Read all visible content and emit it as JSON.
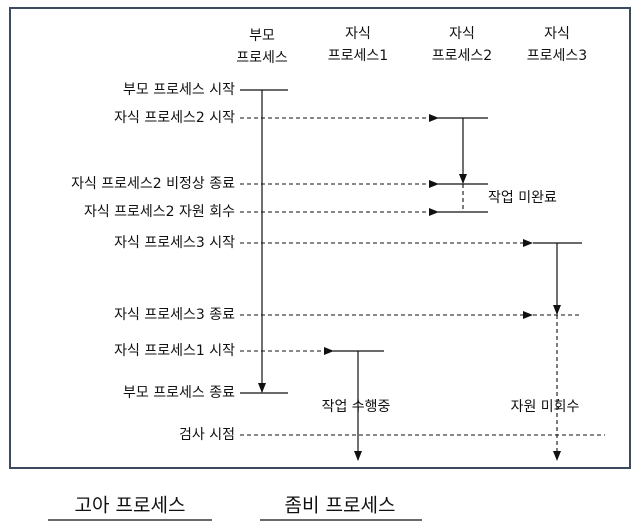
{
  "headers": [
    {
      "lines": [
        "부모",
        "프로세스"
      ]
    },
    {
      "lines": [
        "자식",
        "프로세스1"
      ]
    },
    {
      "lines": [
        "자식",
        "프로세스2"
      ]
    },
    {
      "lines": [
        "자식",
        "프로세스3"
      ]
    }
  ],
  "events": [
    "부모 프로세스 시작",
    "자식 프로세스2 시작",
    "자식 프로세스2 비정상 종료",
    "자식 프로세스2 자원 회수",
    "자식 프로세스3 시작",
    "자식 프로세스3 종료",
    "자식 프로세스1 시작",
    "부모 프로세스 종료",
    "검사 시점"
  ],
  "notes": [
    "작업 미완료",
    "작업 수행중",
    "자원 미회수"
  ],
  "legend": [
    "고아 프로세스",
    "좀비 프로세스"
  ]
}
